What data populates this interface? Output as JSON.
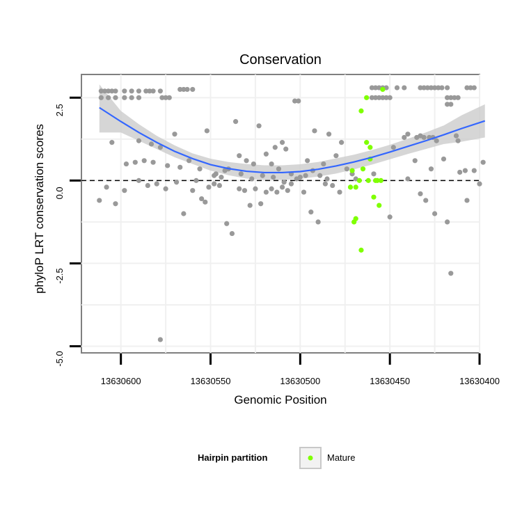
{
  "chart_data": {
    "type": "scatter",
    "title": "Conservation",
    "xlabel": "Genomic Position",
    "ylabel": "phyloP LRT conservation scores",
    "x_reversed": true,
    "xlim": [
      13630400,
      13630622
    ],
    "ylim": [
      -5.2,
      3.2
    ],
    "x_ticks": [
      13630600,
      13630550,
      13630500,
      13630450,
      13630400
    ],
    "y_ticks": [
      2.5,
      0.0,
      -2.5,
      -5.0
    ],
    "y_tick_labels": [
      "2.5",
      "0.0",
      "-2.5",
      "-5.0"
    ],
    "reference_line": {
      "y": 0,
      "style": "dashed",
      "color": "#000000"
    },
    "grid": true,
    "legend": {
      "title": "Hairpin partition",
      "position": "bottom",
      "entries": [
        "Mature"
      ]
    },
    "colors": {
      "other": "#999999",
      "mature": "#7fff00",
      "smooth": "#3366ff",
      "band": "#cccccc"
    },
    "series": [
      {
        "name": "",
        "color": "#999999",
        "points": [
          [
            13630611,
            2.7
          ],
          [
            13630609,
            2.7
          ],
          [
            13630607,
            2.7
          ],
          [
            13630605,
            2.7
          ],
          [
            13630603,
            2.7
          ],
          [
            13630598,
            2.7
          ],
          [
            13630594,
            2.7
          ],
          [
            13630590,
            2.7
          ],
          [
            13630586,
            2.7
          ],
          [
            13630584,
            2.7
          ],
          [
            13630582,
            2.7
          ],
          [
            13630578,
            2.7
          ],
          [
            13630567,
            2.75
          ],
          [
            13630565,
            2.75
          ],
          [
            13630563,
            2.75
          ],
          [
            13630560,
            2.75
          ],
          [
            13630611,
            2.5
          ],
          [
            13630607,
            2.5
          ],
          [
            13630603,
            2.5
          ],
          [
            13630598,
            2.5
          ],
          [
            13630594,
            2.5
          ],
          [
            13630590,
            2.5
          ],
          [
            13630577,
            2.5
          ],
          [
            13630575,
            2.5
          ],
          [
            13630573,
            2.5
          ],
          [
            13630552,
            1.5
          ],
          [
            13630570,
            1.4
          ],
          [
            13630590,
            1.2
          ],
          [
            13630605,
            1.15
          ],
          [
            13630583,
            1.1
          ],
          [
            13630578,
            1.0
          ],
          [
            13630597,
            0.5
          ],
          [
            13630592,
            0.55
          ],
          [
            13630587,
            0.6
          ],
          [
            13630582,
            0.55
          ],
          [
            13630574,
            0.45
          ],
          [
            13630562,
            0.6
          ],
          [
            13630567,
            0.4
          ],
          [
            13630556,
            0.35
          ],
          [
            13630548,
            0.15
          ],
          [
            13630544,
            0.1
          ],
          [
            13630540,
            0.35
          ],
          [
            13630534,
            0.75
          ],
          [
            13630530,
            0.6
          ],
          [
            13630536,
            1.78
          ],
          [
            13630523,
            1.65
          ],
          [
            13630519,
            0.8
          ],
          [
            13630514,
            1.0
          ],
          [
            13630510,
            1.15
          ],
          [
            13630508,
            0.95
          ],
          [
            13630503,
            2.4
          ],
          [
            13630501,
            2.4
          ],
          [
            13630492,
            1.5
          ],
          [
            13630484,
            1.4
          ],
          [
            13630480,
            0.75
          ],
          [
            13630477,
            1.15
          ],
          [
            13630474,
            0.35
          ],
          [
            13630471,
            0.2
          ],
          [
            13630469,
            0.05
          ],
          [
            13630487,
            0.5
          ],
          [
            13630496,
            0.6
          ],
          [
            13630526,
            0.5
          ],
          [
            13630516,
            0.5
          ],
          [
            13630512,
            0.35
          ],
          [
            13630505,
            0.2
          ],
          [
            13630500,
            0.1
          ],
          [
            13630612,
            -0.6
          ],
          [
            13630608,
            -0.2
          ],
          [
            13630603,
            -0.7
          ],
          [
            13630598,
            -0.3
          ],
          [
            13630590,
            0.0
          ],
          [
            13630585,
            -0.15
          ],
          [
            13630580,
            -0.1
          ],
          [
            13630575,
            -0.25
          ],
          [
            13630569,
            -0.05
          ],
          [
            13630565,
            -1.0
          ],
          [
            13630555,
            -0.55
          ],
          [
            13630553,
            -0.65
          ],
          [
            13630551,
            -0.2
          ],
          [
            13630548,
            -0.1
          ],
          [
            13630545,
            -0.15
          ],
          [
            13630541,
            -1.3
          ],
          [
            13630538,
            -1.6
          ],
          [
            13630534,
            -0.25
          ],
          [
            13630531,
            -0.3
          ],
          [
            13630528,
            -0.75
          ],
          [
            13630525,
            -0.25
          ],
          [
            13630522,
            -0.7
          ],
          [
            13630519,
            -0.35
          ],
          [
            13630516,
            -0.25
          ],
          [
            13630513,
            -0.35
          ],
          [
            13630510,
            -0.2
          ],
          [
            13630507,
            -0.3
          ],
          [
            13630505,
            -0.1
          ],
          [
            13630498,
            -0.35
          ],
          [
            13630494,
            -0.95
          ],
          [
            13630490,
            -1.25
          ],
          [
            13630486,
            -0.1
          ],
          [
            13630482,
            -0.15
          ],
          [
            13630478,
            -0.35
          ],
          [
            13630578,
            -4.8
          ],
          [
            13630560,
            -0.3
          ],
          [
            13630542,
            0.3
          ],
          [
            13630558,
            0.0
          ],
          [
            13630547,
            0.2
          ],
          [
            13630533,
            0.2
          ],
          [
            13630527,
            0.05
          ],
          [
            13630521,
            0.15
          ],
          [
            13630515,
            0.1
          ],
          [
            13630509,
            -0.05
          ],
          [
            13630502,
            0.05
          ],
          [
            13630497,
            0.15
          ],
          [
            13630493,
            0.3
          ],
          [
            13630489,
            0.15
          ],
          [
            13630485,
            0.05
          ],
          [
            13630460,
            2.8
          ],
          [
            13630458,
            2.8
          ],
          [
            13630456,
            2.8
          ],
          [
            13630454,
            2.8
          ],
          [
            13630452,
            2.8
          ],
          [
            13630446,
            2.8
          ],
          [
            13630442,
            2.8
          ],
          [
            13630433,
            2.8
          ],
          [
            13630431,
            2.8
          ],
          [
            13630429,
            2.8
          ],
          [
            13630427,
            2.8
          ],
          [
            13630425,
            2.8
          ],
          [
            13630423,
            2.8
          ],
          [
            13630421,
            2.8
          ],
          [
            13630418,
            2.8
          ],
          [
            13630407,
            2.8
          ],
          [
            13630405,
            2.8
          ],
          [
            13630403,
            2.8
          ],
          [
            13630460,
            2.5
          ],
          [
            13630458,
            2.5
          ],
          [
            13630456,
            2.5
          ],
          [
            13630454,
            2.5
          ],
          [
            13630452,
            2.5
          ],
          [
            13630450,
            2.5
          ],
          [
            13630418,
            2.5
          ],
          [
            13630416,
            2.5
          ],
          [
            13630414,
            2.5
          ],
          [
            13630412,
            2.5
          ],
          [
            13630418,
            2.3
          ],
          [
            13630416,
            2.3
          ],
          [
            13630442,
            1.3
          ],
          [
            13630440,
            1.4
          ],
          [
            13630435,
            1.3
          ],
          [
            13630433,
            1.35
          ],
          [
            13630431,
            1.3
          ],
          [
            13630428,
            1.3
          ],
          [
            13630426,
            1.3
          ],
          [
            13630424,
            1.2
          ],
          [
            13630413,
            1.35
          ],
          [
            13630412,
            1.2
          ],
          [
            13630420,
            0.65
          ],
          [
            13630448,
            1.0
          ],
          [
            13630436,
            0.6
          ],
          [
            13630427,
            0.35
          ],
          [
            13630459,
            0.2
          ],
          [
            13630408,
            0.3
          ],
          [
            13630411,
            0.25
          ],
          [
            13630403,
            0.3
          ],
          [
            13630398,
            0.55
          ],
          [
            13630433,
            -0.4
          ],
          [
            13630430,
            -0.6
          ],
          [
            13630425,
            -1.0
          ],
          [
            13630418,
            -1.25
          ],
          [
            13630407,
            -0.6
          ],
          [
            13630450,
            -1.1
          ],
          [
            13630416,
            -2.8
          ],
          [
            13630400,
            -0.1
          ],
          [
            13630440,
            0.05
          ]
        ]
      },
      {
        "name": "Mature",
        "color": "#7fff00",
        "points": [
          [
            13630466,
            2.1
          ],
          [
            13630463,
            2.5
          ],
          [
            13630454,
            2.75
          ],
          [
            13630463,
            1.15
          ],
          [
            13630461,
            1.0
          ],
          [
            13630461,
            0.65
          ],
          [
            13630465,
            0.35
          ],
          [
            13630471,
            0.3
          ],
          [
            13630467,
            0.0
          ],
          [
            13630469,
            -0.2
          ],
          [
            13630472,
            -0.2
          ],
          [
            13630462,
            0.0
          ],
          [
            13630458,
            0.0
          ],
          [
            13630457,
            0.0
          ],
          [
            13630459,
            -0.5
          ],
          [
            13630456,
            -0.75
          ],
          [
            13630469,
            -1.15
          ],
          [
            13630470,
            -1.25
          ],
          [
            13630466,
            -2.1
          ],
          [
            13630455,
            0.0
          ]
        ]
      }
    ],
    "smooth": {
      "x": [
        13630612,
        13630600,
        13630590,
        13630580,
        13630570,
        13630560,
        13630550,
        13630540,
        13630530,
        13630520,
        13630510,
        13630500,
        13630490,
        13630480,
        13630470,
        13630460,
        13630450,
        13630440,
        13630430,
        13630420,
        13630410,
        13630397
      ],
      "y": [
        2.2,
        1.78,
        1.45,
        1.15,
        0.88,
        0.66,
        0.48,
        0.36,
        0.28,
        0.24,
        0.24,
        0.27,
        0.34,
        0.44,
        0.56,
        0.7,
        0.86,
        1.03,
        1.2,
        1.38,
        1.57,
        1.8
      ],
      "lower": [
        1.45,
        1.45,
        1.2,
        0.95,
        0.7,
        0.5,
        0.3,
        0.16,
        0.06,
        0.02,
        0.02,
        0.05,
        0.12,
        0.21,
        0.34,
        0.48,
        0.64,
        0.8,
        0.95,
        1.1,
        1.17,
        1.3
      ],
      "upper": [
        2.9,
        2.1,
        1.7,
        1.35,
        1.06,
        0.82,
        0.66,
        0.56,
        0.5,
        0.46,
        0.46,
        0.49,
        0.56,
        0.67,
        0.78,
        0.92,
        1.08,
        1.26,
        1.45,
        1.66,
        1.97,
        2.3
      ]
    }
  }
}
